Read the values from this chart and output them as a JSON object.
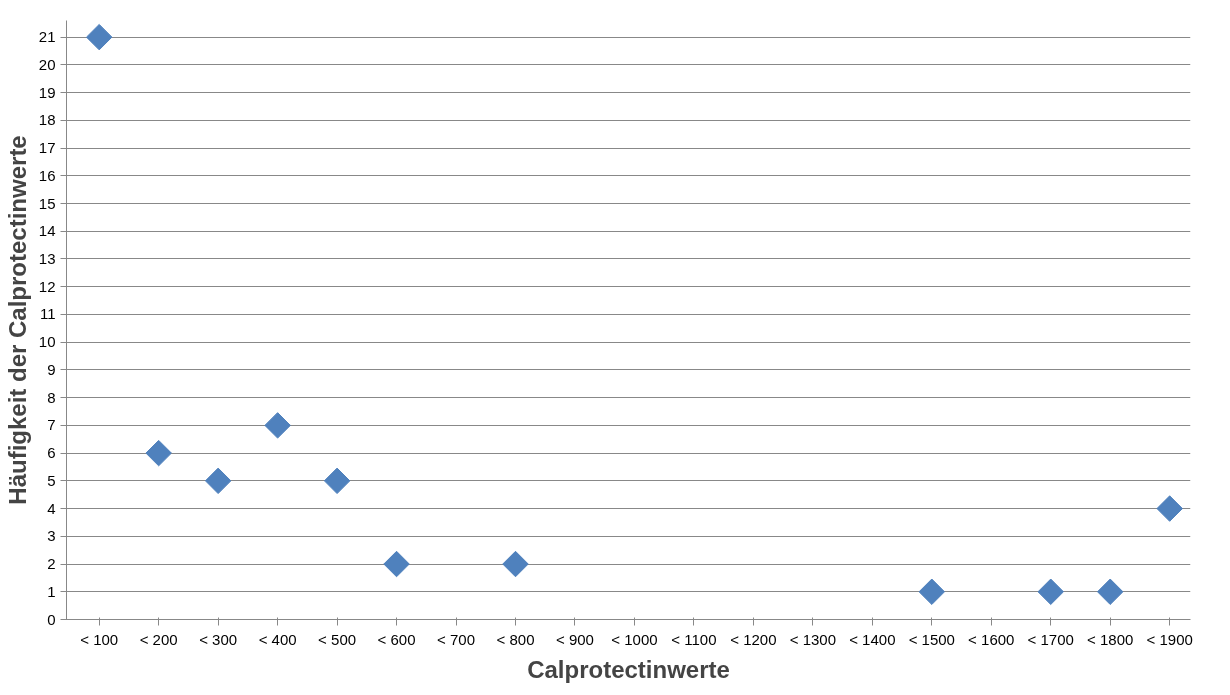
{
  "chart_data": {
    "type": "scatter",
    "xlabel": "Calprotectinwerte",
    "ylabel": "Häufigkeit der Calprotectinwerte",
    "categories": [
      "< 100",
      "< 200",
      "< 300",
      "< 400",
      "< 500",
      "< 600",
      "< 700",
      "< 800",
      "< 900",
      "< 1000",
      "< 1100",
      "< 1200",
      "< 1300",
      "< 1400",
      "< 1500",
      "< 1600",
      "< 1700",
      "< 1800",
      "< 1900"
    ],
    "series": [
      {
        "color": "#4f81bd",
        "values": [
          21,
          6,
          5,
          7,
          5,
          2,
          null,
          2,
          null,
          null,
          null,
          null,
          null,
          null,
          1,
          null,
          1,
          1,
          4
        ]
      }
    ],
    "ylim": [
      0,
      21.6
    ],
    "yticks": [
      0,
      1,
      2,
      3,
      4,
      5,
      6,
      7,
      8,
      9,
      10,
      11,
      12,
      13,
      14,
      15,
      16,
      17,
      18,
      19,
      20,
      21
    ],
    "grid": "y",
    "marker": "diamond"
  }
}
